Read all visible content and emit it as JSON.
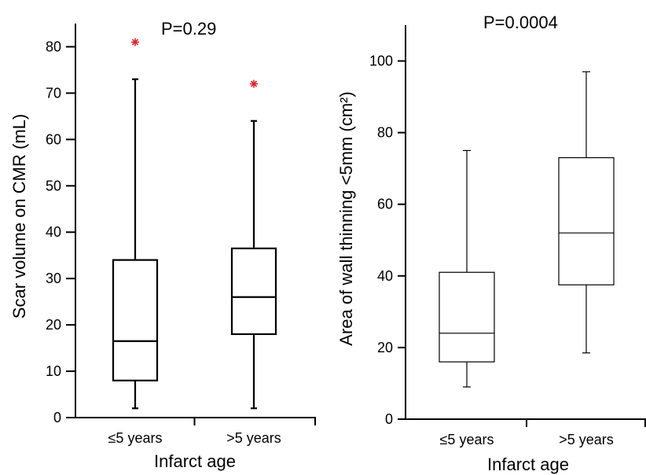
{
  "chart_data": [
    {
      "type": "box",
      "title": "",
      "annotation": "P=0.29",
      "xlabel": "Infarct age",
      "ylabel": "Scar volume on CMR (mL)",
      "ylim": [
        0,
        80
      ],
      "yticks": [
        0,
        10,
        20,
        30,
        40,
        50,
        60,
        70,
        80
      ],
      "grid": false,
      "categories": [
        "≤5 years",
        ">5 years"
      ],
      "boxes": [
        {
          "whisker_low": 2,
          "q1": 8,
          "median": 16.5,
          "q3": 34,
          "whisker_high": 73,
          "outliers": [
            81
          ]
        },
        {
          "whisker_low": 2,
          "q1": 18,
          "median": 26,
          "q3": 36.5,
          "whisker_high": 64,
          "outliers": [
            72
          ]
        }
      ],
      "colors": {
        "lines": "#000000",
        "outlier": "#e8202a"
      }
    },
    {
      "type": "box",
      "title": "",
      "annotation": "P=0.0004",
      "xlabel": "Infarct age",
      "ylabel": "Area of wall thinning <5mm (cm²)",
      "ylim": [
        0,
        100
      ],
      "yticks": [
        0,
        20,
        40,
        60,
        80,
        100
      ],
      "grid": false,
      "categories": [
        "≤5 years",
        ">5 years"
      ],
      "boxes": [
        {
          "whisker_low": 9,
          "q1": 16,
          "median": 24,
          "q3": 41,
          "whisker_high": 75,
          "outliers": []
        },
        {
          "whisker_low": 18.5,
          "q1": 37.5,
          "median": 52,
          "q3": 73,
          "whisker_high": 97,
          "outliers": []
        }
      ],
      "colors": {
        "lines": "#000000",
        "outlier": "#e8202a"
      }
    }
  ]
}
